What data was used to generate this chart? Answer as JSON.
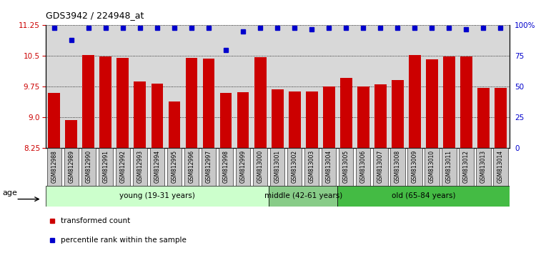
{
  "title": "GDS3942 / 224948_at",
  "samples": [
    "GSM812988",
    "GSM812989",
    "GSM812990",
    "GSM812991",
    "GSM812992",
    "GSM812993",
    "GSM812994",
    "GSM812995",
    "GSM812996",
    "GSM812997",
    "GSM812998",
    "GSM812999",
    "GSM813000",
    "GSM813001",
    "GSM813002",
    "GSM813003",
    "GSM813004",
    "GSM813005",
    "GSM813006",
    "GSM813007",
    "GSM813008",
    "GSM813009",
    "GSM813010",
    "GSM813011",
    "GSM813012",
    "GSM813013",
    "GSM813014"
  ],
  "bar_values": [
    9.6,
    8.93,
    10.52,
    10.49,
    10.45,
    9.88,
    9.83,
    9.38,
    10.45,
    10.43,
    9.6,
    9.62,
    10.47,
    9.68,
    9.63,
    9.63,
    9.75,
    9.97,
    9.75,
    9.8,
    9.92,
    10.52,
    10.41,
    10.48,
    10.48,
    9.72,
    9.72
  ],
  "percentile_values": [
    98,
    88,
    98,
    98,
    98,
    98,
    98,
    98,
    98,
    98,
    80,
    95,
    98,
    98,
    98,
    97,
    98,
    98,
    98,
    98,
    98,
    98,
    98,
    98,
    97,
    98,
    98
  ],
  "bar_color": "#cc0000",
  "percentile_color": "#0000cc",
  "ylim_left": [
    8.25,
    11.25
  ],
  "ybase": 8.25,
  "ylim_right": [
    0,
    100
  ],
  "yticks_left": [
    8.25,
    9.0,
    9.75,
    10.5,
    11.25
  ],
  "yticks_right": [
    0,
    25,
    50,
    75,
    100
  ],
  "groups": [
    {
      "label": "young (19-31 years)",
      "start": 0,
      "end": 13,
      "color": "#ccffcc"
    },
    {
      "label": "middle (42-61 years)",
      "start": 13,
      "end": 17,
      "color": "#88cc88"
    },
    {
      "label": "old (65-84 years)",
      "start": 17,
      "end": 27,
      "color": "#44bb44"
    }
  ],
  "legend_items": [
    {
      "label": "transformed count",
      "color": "#cc0000",
      "marker": "s"
    },
    {
      "label": "percentile rank within the sample",
      "color": "#0000cc",
      "marker": "s"
    }
  ],
  "age_label": "age",
  "plot_bg": "#d8d8d8",
  "tick_bg": "#c8c8c8"
}
